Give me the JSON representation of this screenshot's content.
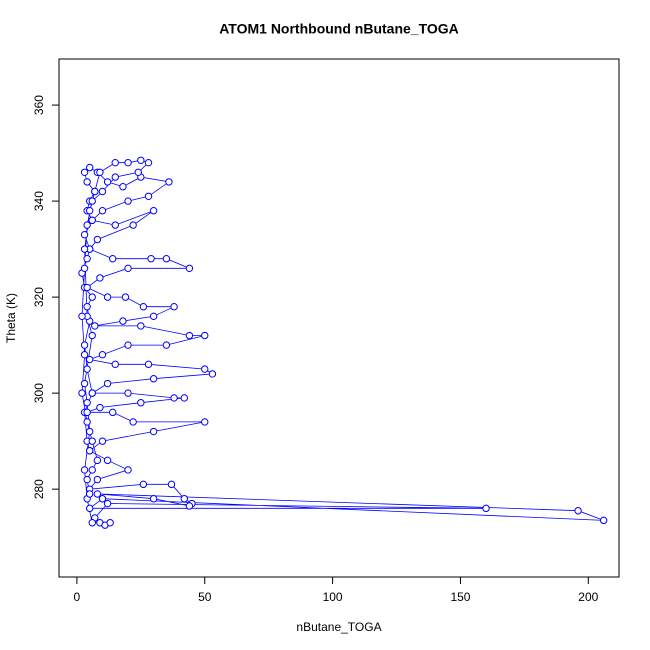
{
  "chart_data": {
    "type": "scatter_line",
    "title": "ATOM1 Northbound nButane_TOGA",
    "x_label": "nButane_TOGA",
    "y_label": "Theta (K)",
    "color": "#0000ff",
    "xlim": [
      -7,
      212
    ],
    "ylim": [
      261.7,
      369.6
    ],
    "xticks": [
      0,
      50,
      100,
      150,
      200
    ],
    "yticks": [
      280,
      300,
      320,
      340,
      360
    ],
    "x": [
      5,
      4,
      3,
      6,
      4,
      3,
      5,
      4,
      6,
      3,
      2,
      4,
      5,
      3,
      6,
      4,
      5,
      7,
      4,
      3,
      5,
      8,
      12,
      18,
      25,
      36,
      28,
      20,
      10,
      6,
      15,
      30,
      22,
      8,
      5,
      14,
      29,
      35,
      44,
      20,
      9,
      4,
      12,
      19,
      26,
      38,
      30,
      18,
      7,
      25,
      44,
      50,
      35,
      20,
      10,
      5,
      15,
      28,
      50,
      53,
      30,
      12,
      6,
      20,
      38,
      42,
      25,
      9,
      4,
      14,
      22,
      50,
      30,
      10,
      5,
      12,
      20,
      8,
      5,
      26,
      37,
      42,
      45,
      44,
      30,
      8,
      196,
      206,
      10,
      5,
      160,
      12,
      7,
      9,
      11,
      13,
      6,
      4,
      3,
      5,
      4,
      3,
      6,
      4,
      3,
      5,
      7,
      9,
      15,
      20,
      25,
      28,
      24,
      15,
      10,
      6,
      4,
      3,
      2,
      3,
      2,
      4,
      6,
      8,
      6,
      4,
      5
    ],
    "values": [
      288,
      290,
      296,
      300,
      305,
      310,
      315,
      318,
      320,
      322,
      325,
      328,
      330,
      333,
      336,
      338,
      340,
      342,
      344,
      346,
      347,
      346,
      344,
      343,
      345,
      344,
      341,
      340,
      338,
      336,
      335,
      338,
      335,
      332,
      330,
      328,
      328,
      328,
      326,
      326,
      324,
      322,
      320,
      320,
      318,
      318,
      316,
      315,
      314,
      314,
      312,
      312,
      310,
      310,
      308,
      307,
      306,
      306,
      305,
      304,
      303,
      302,
      300,
      300,
      299,
      299,
      298,
      297,
      296,
      296,
      294,
      294,
      292,
      290,
      288,
      286,
      284,
      282,
      280,
      281,
      281,
      278,
      277,
      276.5,
      278,
      279,
      275.5,
      273.5,
      278,
      276,
      276,
      277,
      274,
      273,
      272.5,
      273,
      273,
      278,
      284,
      292,
      298,
      302,
      312,
      316,
      330,
      338,
      342,
      346,
      348,
      348,
      348.5,
      348,
      346,
      345,
      342,
      340,
      335,
      326,
      316,
      308,
      300,
      294,
      290,
      286,
      284,
      282,
      279
    ]
  }
}
